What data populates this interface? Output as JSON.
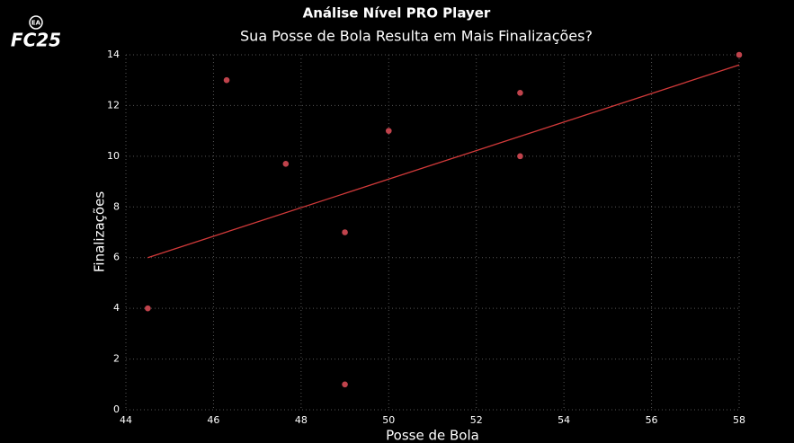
{
  "logo": {
    "badge": "EA",
    "name": "FC25"
  },
  "chart_data": {
    "type": "scatter",
    "title": "Análise Nível PRO Player",
    "subtitle": "Sua Posse de Bola Resulta em Mais Finalizações?",
    "x_label": "Posse de Bola",
    "y_label": "Finalizações",
    "x": [
      44.5,
      46.3,
      47.65,
      49,
      49,
      50,
      53,
      53,
      58
    ],
    "values": [
      4,
      13,
      9.7,
      7,
      1,
      11,
      12.5,
      10,
      14
    ],
    "color": "#c0434c",
    "trendline": {
      "x": [
        44.5,
        58
      ],
      "y": [
        6,
        13.6
      ],
      "color": "#d23a3a"
    },
    "xlim": [
      44,
      58
    ],
    "xticks": [
      44,
      46,
      48,
      50,
      52,
      54,
      56,
      58
    ],
    "ylim": [
      0,
      14
    ],
    "yticks": [
      0,
      2,
      4,
      6,
      8,
      10,
      12,
      14
    ],
    "grid": true
  }
}
